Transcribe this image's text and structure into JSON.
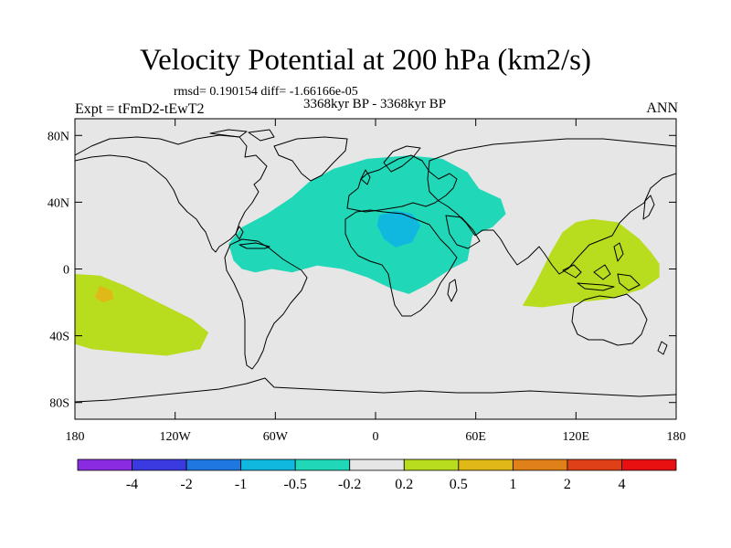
{
  "chart_data": {
    "type": "heatmap",
    "title": "Velocity Potential at 200 hPa (km2/s)",
    "stats_label": "rmsd= 0.190154 diff= -1.66166e-05",
    "left_label": "Expt = tFmD2-tEwT2",
    "center_label": "3368kyr BP - 3368kyr BP",
    "right_label": "ANN",
    "x_range": [
      -180,
      180
    ],
    "y_range": [
      -90,
      90
    ],
    "x_ticks": [
      {
        "value": -180,
        "label": "180"
      },
      {
        "value": -120,
        "label": "120W"
      },
      {
        "value": -60,
        "label": "60W"
      },
      {
        "value": 0,
        "label": "0"
      },
      {
        "value": 60,
        "label": "60E"
      },
      {
        "value": 120,
        "label": "120E"
      },
      {
        "value": 180,
        "label": "180"
      }
    ],
    "y_ticks": [
      {
        "value": 80,
        "label": "80N"
      },
      {
        "value": 40,
        "label": "40N"
      },
      {
        "value": 0,
        "label": "0"
      },
      {
        "value": -40,
        "label": "40S"
      },
      {
        "value": -80,
        "label": "80S"
      }
    ],
    "levels": [
      "-4",
      "-2",
      "-1",
      "-0.5",
      "-0.2",
      "0.2",
      "0.5",
      "1",
      "2",
      "4"
    ],
    "colors": [
      "#8a2be2",
      "#3a3ae0",
      "#1e78e0",
      "#10b8e0",
      "#20d8b8",
      "#e6e6e6",
      "#b8dc1e",
      "#e0b818",
      "#e08018",
      "#e04018",
      "#e81010"
    ],
    "background_color": "#e6e6e6",
    "regions": [
      {
        "name": "atlantic-africa-negative-anomaly",
        "level_color": "#20d8b8",
        "polygon": [
          [
            -85,
            5
          ],
          [
            -88,
            15
          ],
          [
            -80,
            25
          ],
          [
            -65,
            33
          ],
          [
            -50,
            43
          ],
          [
            -40,
            52
          ],
          [
            -25,
            60
          ],
          [
            -5,
            66
          ],
          [
            20,
            68
          ],
          [
            40,
            66
          ],
          [
            55,
            58
          ],
          [
            62,
            48
          ],
          [
            75,
            42
          ],
          [
            78,
            33
          ],
          [
            70,
            25
          ],
          [
            58,
            20
          ],
          [
            55,
            5
          ],
          [
            45,
            0
          ],
          [
            30,
            -10
          ],
          [
            20,
            -15
          ],
          [
            10,
            -12
          ],
          [
            -5,
            -5
          ],
          [
            -20,
            0
          ],
          [
            -35,
            2
          ],
          [
            -50,
            -2
          ],
          [
            -62,
            0
          ],
          [
            -72,
            -2
          ],
          [
            -80,
            0
          ]
        ]
      },
      {
        "name": "sahara-stronger-negative-anomaly",
        "level_color": "#10b8e0",
        "polygon": [
          [
            2,
            32
          ],
          [
            12,
            35
          ],
          [
            22,
            33
          ],
          [
            27,
            26
          ],
          [
            22,
            16
          ],
          [
            12,
            13
          ],
          [
            5,
            18
          ],
          [
            1,
            26
          ]
        ]
      },
      {
        "name": "maritime-continent-positive-anomaly",
        "level_color": "#b8dc1e",
        "polygon": [
          [
            88,
            -22
          ],
          [
            95,
            -10
          ],
          [
            100,
            0
          ],
          [
            105,
            10
          ],
          [
            112,
            22
          ],
          [
            120,
            28
          ],
          [
            130,
            30
          ],
          [
            145,
            28
          ],
          [
            158,
            18
          ],
          [
            165,
            10
          ],
          [
            170,
            3
          ],
          [
            170,
            -5
          ],
          [
            160,
            -12
          ],
          [
            140,
            -18
          ],
          [
            120,
            -20
          ],
          [
            100,
            -23
          ]
        ]
      },
      {
        "name": "south-pacific-positive-anomaly",
        "level_color": "#b8dc1e",
        "polygon": [
          [
            -180,
            -3
          ],
          [
            -165,
            -4
          ],
          [
            -150,
            -10
          ],
          [
            -130,
            -20
          ],
          [
            -110,
            -30
          ],
          [
            -100,
            -38
          ],
          [
            -105,
            -48
          ],
          [
            -125,
            -52
          ],
          [
            -150,
            -50
          ],
          [
            -170,
            -48
          ],
          [
            -180,
            -45
          ]
        ]
      },
      {
        "name": "south-pacific-core-anomaly",
        "level_color": "#e0b818",
        "polygon": [
          [
            -165,
            -10
          ],
          [
            -158,
            -13
          ],
          [
            -157,
            -18
          ],
          [
            -163,
            -20
          ],
          [
            -168,
            -17
          ]
        ]
      }
    ]
  }
}
